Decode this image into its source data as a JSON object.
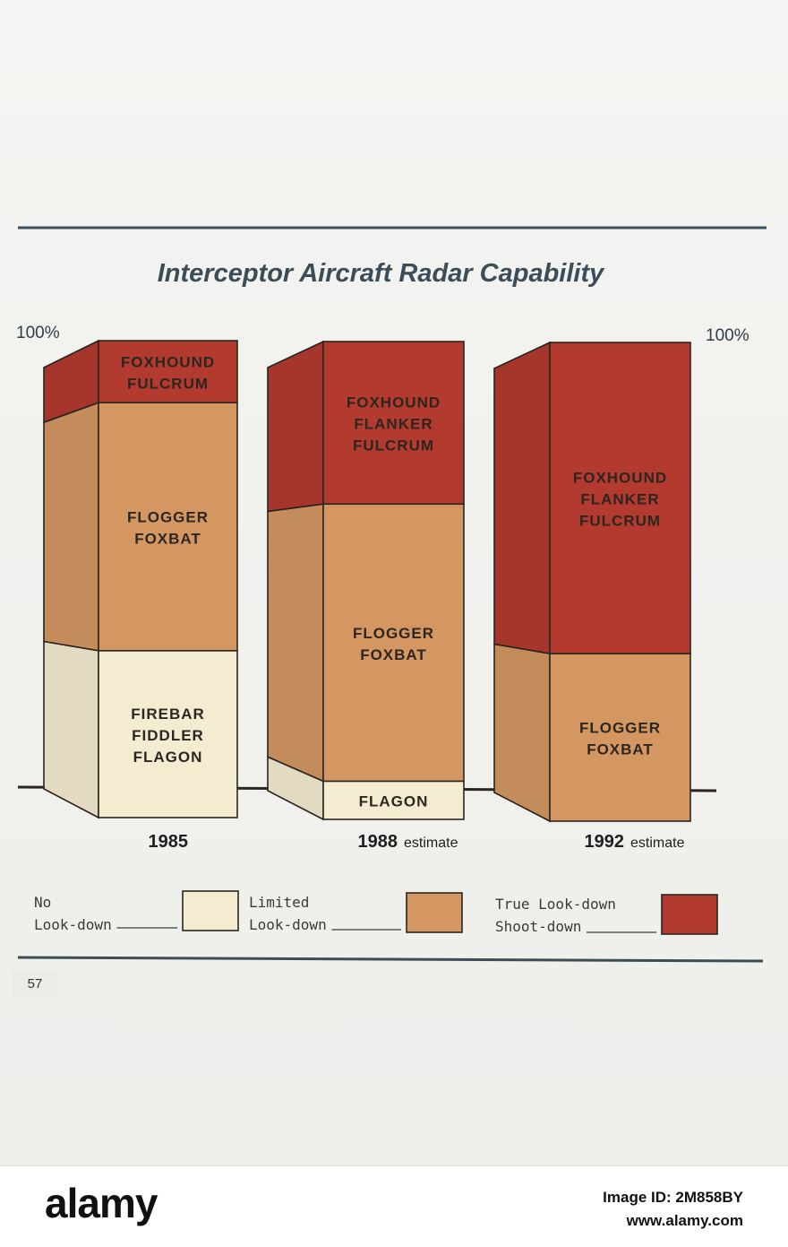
{
  "page_number": "57",
  "colors": {
    "no_lookdown": "#f3ecd0",
    "limited_lookdown": "#d49762",
    "true_lookdown": "#b23a2e",
    "title": "#3c4d57",
    "outline": "#2b2620"
  },
  "chart_data": {
    "type": "bar",
    "stacked": true,
    "title": "Interceptor Aircraft Radar Capability",
    "y_max_label_left": "100%",
    "y_max_label_right": "100%",
    "ylim": [
      0,
      100
    ],
    "categories": [
      {
        "year": "1985",
        "suffix": ""
      },
      {
        "year": "1988",
        "suffix": "estimate"
      },
      {
        "year": "1992",
        "suffix": "estimate"
      }
    ],
    "series": [
      {
        "key": "no_lookdown",
        "values": [
          35,
          8,
          0
        ],
        "labels": [
          [
            "FIREBAR",
            "FIDDLER",
            "FLAGON"
          ],
          [
            "FLAGON"
          ],
          []
        ]
      },
      {
        "key": "limited_lookdown",
        "values": [
          52,
          58,
          35
        ],
        "labels": [
          [
            "FLOGGER",
            "FOXBAT"
          ],
          [
            "FLOGGER",
            "FOXBAT"
          ],
          [
            "FLOGGER",
            "FOXBAT"
          ]
        ]
      },
      {
        "key": "true_lookdown",
        "values": [
          13,
          34,
          65
        ],
        "labels": [
          [
            "FOXHOUND",
            "FULCRUM"
          ],
          [
            "FOXHOUND",
            "FLANKER",
            "FULCRUM"
          ],
          [
            "FOXHOUND",
            "FLANKER",
            "FULCRUM"
          ]
        ]
      }
    ],
    "legend": [
      {
        "key": "no_lookdown",
        "lines": [
          "No",
          "Look-down"
        ]
      },
      {
        "key": "limited_lookdown",
        "lines": [
          "Limited",
          "Look-down"
        ]
      },
      {
        "key": "true_lookdown",
        "lines": [
          "True Look-down",
          "Shoot-down"
        ]
      }
    ]
  },
  "footer": {
    "logo": "alamy",
    "image_id": "Image ID: 2M858BY",
    "site": "www.alamy.com"
  }
}
